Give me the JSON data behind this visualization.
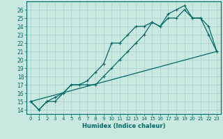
{
  "xlabel": "Humidex (Indice chaleur)",
  "ylabel": "",
  "bg_color": "#c8e8e0",
  "grid_color": "#a8d0cc",
  "line_color": "#006868",
  "xlim": [
    -0.5,
    23.5
  ],
  "ylim": [
    13.5,
    27
  ],
  "xticks": [
    0,
    1,
    2,
    3,
    4,
    5,
    6,
    7,
    8,
    9,
    10,
    11,
    12,
    13,
    14,
    15,
    16,
    17,
    18,
    19,
    20,
    21,
    22,
    23
  ],
  "yticks": [
    14,
    15,
    16,
    17,
    18,
    19,
    20,
    21,
    22,
    23,
    24,
    25,
    26
  ],
  "line1_x": [
    0,
    1,
    2,
    3,
    4,
    5,
    6,
    7,
    8,
    9,
    10,
    11,
    12,
    13,
    14,
    15,
    16,
    17,
    18,
    19,
    20,
    21,
    22,
    23
  ],
  "line1_y": [
    15,
    14,
    15,
    15,
    16,
    17,
    17,
    17,
    17,
    18,
    19,
    20,
    21,
    22,
    23,
    24.5,
    24,
    25,
    25,
    26,
    25,
    25,
    23,
    21
  ],
  "line2_x": [
    0,
    1,
    2,
    3,
    4,
    5,
    6,
    7,
    8,
    9,
    10,
    11,
    12,
    13,
    14,
    15,
    16,
    17,
    18,
    19,
    20,
    21,
    22,
    23
  ],
  "line2_y": [
    15,
    14,
    15,
    15.5,
    16,
    17,
    17,
    17.5,
    18.5,
    19.5,
    22,
    22,
    23,
    24,
    24,
    24.5,
    24,
    25.5,
    26,
    26.5,
    25,
    25,
    24,
    21
  ],
  "line3_x": [
    0,
    23
  ],
  "line3_y": [
    15,
    21
  ]
}
